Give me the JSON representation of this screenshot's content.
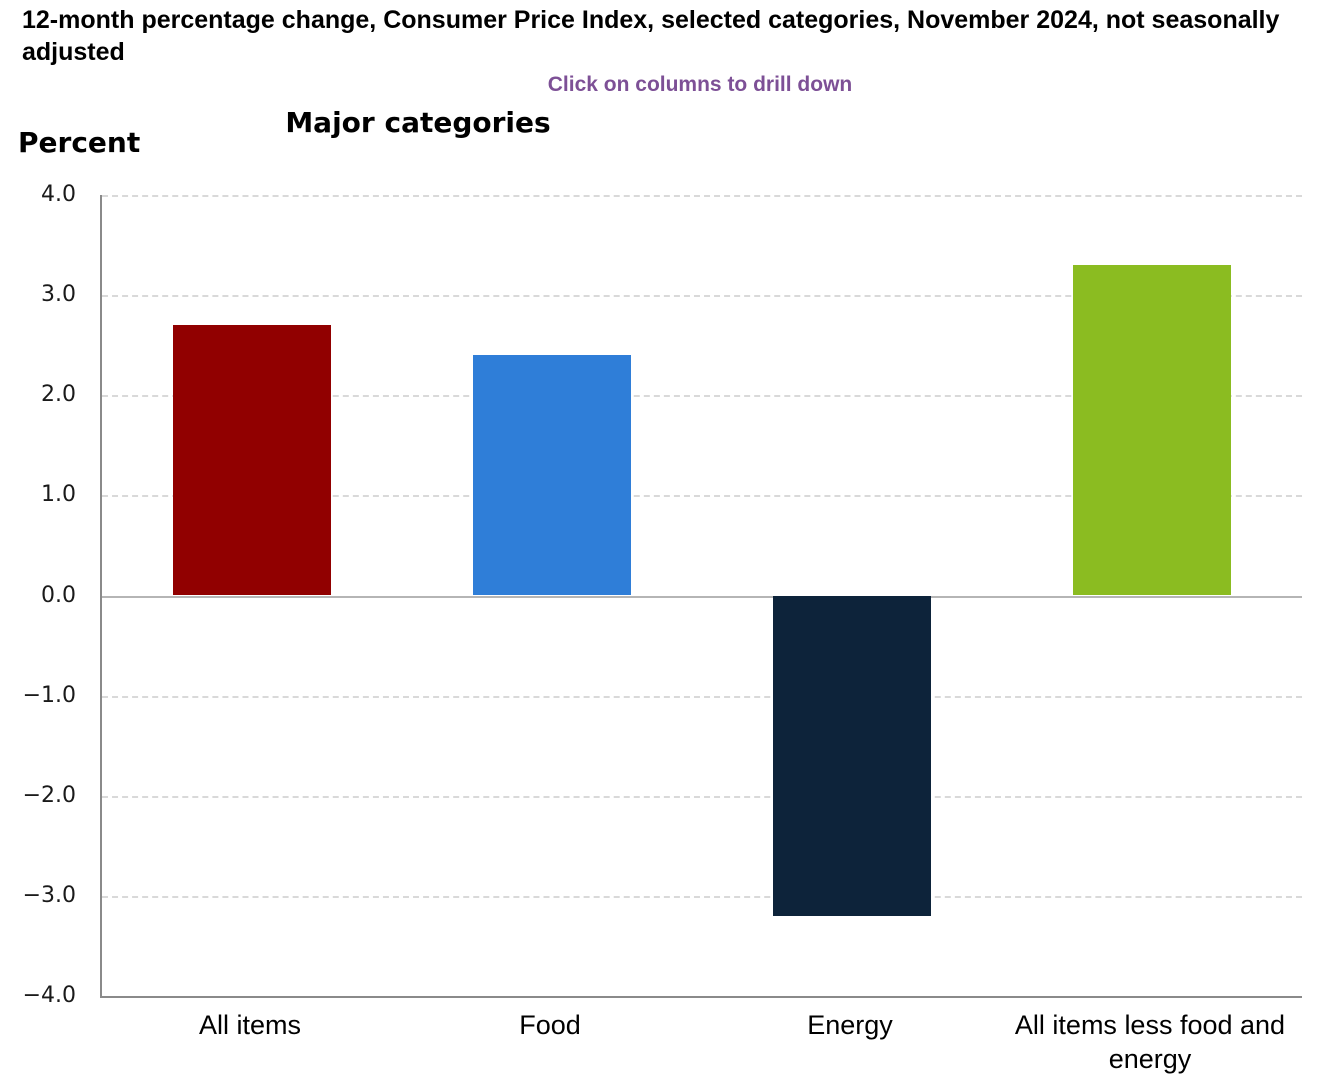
{
  "header": {
    "title": "12-month percentage change, Consumer Price Index, selected categories, November 2024, not seasonally adjusted",
    "drill_hint": "Click on columns to drill down",
    "drill_hint_color": "#7d5096",
    "y_axis_unit": "Percent",
    "chart_heading": "Major categories"
  },
  "chart_data": {
    "type": "bar",
    "title": "Major categories",
    "ylabel": "Percent",
    "categories": [
      "All items",
      "Food",
      "Energy",
      "All items less food and energy"
    ],
    "values": [
      2.7,
      2.4,
      -3.2,
      3.3
    ],
    "bar_colors": [
      "#910000",
      "#2f7ed8",
      "#0d233a",
      "#8bbc21"
    ],
    "ylim": [
      -4.0,
      4.0
    ],
    "ytick_step": 1.0,
    "ytick_labels": [
      "4.0",
      "3.0",
      "2.0",
      "1.0",
      "0.0",
      "−1.0",
      "−2.0",
      "−3.0",
      "−4.0"
    ],
    "grid": "horizontal dashed gridlines, solid line at zero",
    "legend": "none",
    "interaction_note": "columns are clickable to drill down"
  }
}
